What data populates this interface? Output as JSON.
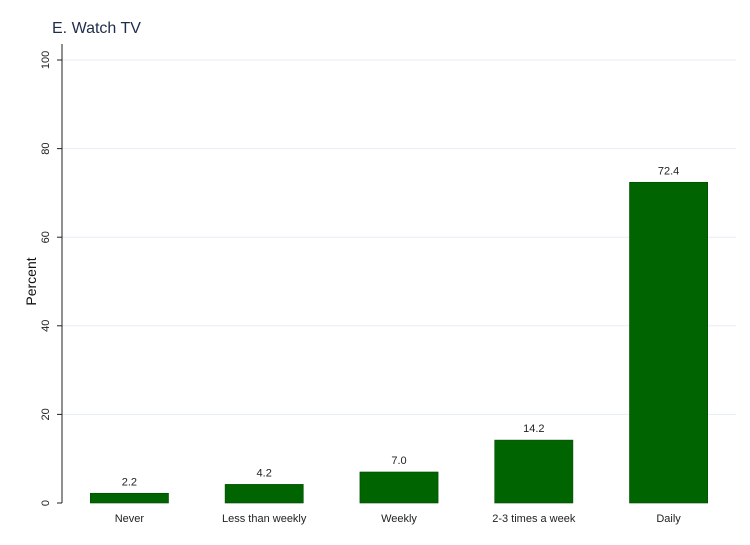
{
  "chart_data": {
    "type": "bar",
    "title": "E. Watch TV",
    "xlabel": "",
    "ylabel": "Percent",
    "categories": [
      "Never",
      "Less than weekly",
      "Weekly",
      "2-3 times a week",
      "Daily"
    ],
    "values": [
      2.2,
      4.2,
      7.0,
      14.2,
      72.4
    ],
    "value_labels": [
      "2.2",
      "4.2",
      "7.0",
      "14.2",
      "72.4"
    ],
    "ylim": [
      0,
      100
    ],
    "yticks": [
      0,
      20,
      40,
      60,
      80,
      100
    ],
    "grid": true,
    "bar_color": "#006400",
    "grid_color": "#e6eef2"
  }
}
